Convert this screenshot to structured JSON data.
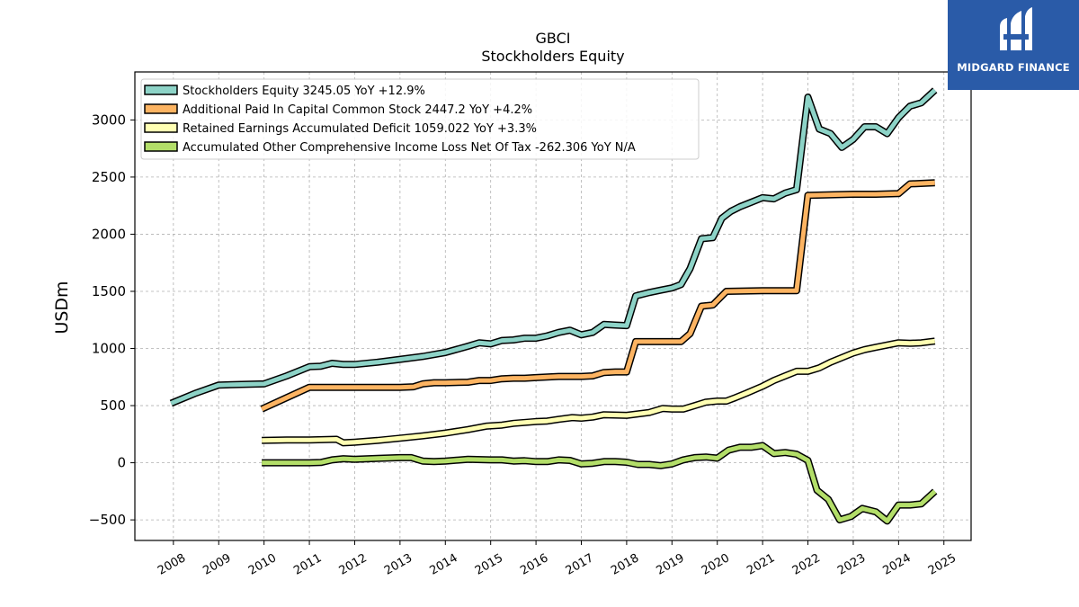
{
  "chart_data": {
    "type": "line",
    "title": "GBCI",
    "subtitle": "Stockholders  Equity",
    "ylabel": "USDm",
    "xlabel": "",
    "xlim": [
      2007.15,
      2025.6
    ],
    "ylim": [
      -680,
      3420
    ],
    "x_ticks": [
      2008,
      2009,
      2010,
      2011,
      2012,
      2013,
      2014,
      2015,
      2016,
      2017,
      2018,
      2019,
      2020,
      2021,
      2022,
      2023,
      2024,
      2025
    ],
    "y_ticks": [
      -500,
      0,
      500,
      1000,
      1500,
      2000,
      2500,
      3000
    ],
    "y_tick_labels": [
      "−500",
      "0",
      "500",
      "1000",
      "1500",
      "2000",
      "2500",
      "3000"
    ],
    "grid": true,
    "legend_position": "upper-left",
    "series": [
      {
        "name": "Stockholders Equity  3245.05 YoY +12.9%",
        "color": "#8dd3c7",
        "points": [
          [
            2007.95,
            520
          ],
          [
            2008.5,
            610
          ],
          [
            2009.0,
            680
          ],
          [
            2009.5,
            685
          ],
          [
            2010.0,
            690
          ],
          [
            2010.5,
            760
          ],
          [
            2011.0,
            840
          ],
          [
            2011.25,
            845
          ],
          [
            2011.5,
            870
          ],
          [
            2011.75,
            860
          ],
          [
            2012.0,
            860
          ],
          [
            2012.5,
            880
          ],
          [
            2013.0,
            905
          ],
          [
            2013.5,
            930
          ],
          [
            2014.0,
            965
          ],
          [
            2014.5,
            1020
          ],
          [
            2014.75,
            1050
          ],
          [
            2015.0,
            1040
          ],
          [
            2015.25,
            1070
          ],
          [
            2015.5,
            1075
          ],
          [
            2015.75,
            1090
          ],
          [
            2016.0,
            1090
          ],
          [
            2016.25,
            1110
          ],
          [
            2016.5,
            1140
          ],
          [
            2016.75,
            1160
          ],
          [
            2017.0,
            1120
          ],
          [
            2017.25,
            1140
          ],
          [
            2017.5,
            1210
          ],
          [
            2017.75,
            1205
          ],
          [
            2018.0,
            1200
          ],
          [
            2018.2,
            1460
          ],
          [
            2018.5,
            1490
          ],
          [
            2018.75,
            1510
          ],
          [
            2019.0,
            1530
          ],
          [
            2019.2,
            1560
          ],
          [
            2019.4,
            1700
          ],
          [
            2019.65,
            1960
          ],
          [
            2019.9,
            1970
          ],
          [
            2020.1,
            2140
          ],
          [
            2020.3,
            2200
          ],
          [
            2020.5,
            2240
          ],
          [
            2020.75,
            2280
          ],
          [
            2021.0,
            2320
          ],
          [
            2021.25,
            2310
          ],
          [
            2021.5,
            2360
          ],
          [
            2021.75,
            2390
          ],
          [
            2022.0,
            3200
          ],
          [
            2022.25,
            2920
          ],
          [
            2022.5,
            2880
          ],
          [
            2022.75,
            2760
          ],
          [
            2023.0,
            2830
          ],
          [
            2023.25,
            2940
          ],
          [
            2023.5,
            2940
          ],
          [
            2023.75,
            2880
          ],
          [
            2024.0,
            3020
          ],
          [
            2024.25,
            3120
          ],
          [
            2024.5,
            3150
          ],
          [
            2024.8,
            3260
          ]
        ]
      },
      {
        "name": "Additional Paid In Capital Common Stock  2447.2 YoY +4.2%",
        "color": "#fdb462",
        "points": [
          [
            2009.95,
            470
          ],
          [
            2010.5,
            570
          ],
          [
            2011.0,
            660
          ],
          [
            2011.5,
            660
          ],
          [
            2012.0,
            660
          ],
          [
            2012.5,
            660
          ],
          [
            2013.0,
            660
          ],
          [
            2013.3,
            665
          ],
          [
            2013.5,
            690
          ],
          [
            2013.75,
            700
          ],
          [
            2014.0,
            700
          ],
          [
            2014.5,
            705
          ],
          [
            2014.75,
            720
          ],
          [
            2015.0,
            720
          ],
          [
            2015.25,
            735
          ],
          [
            2015.5,
            740
          ],
          [
            2015.75,
            740
          ],
          [
            2016.0,
            745
          ],
          [
            2016.25,
            750
          ],
          [
            2016.5,
            755
          ],
          [
            2016.75,
            755
          ],
          [
            2017.0,
            755
          ],
          [
            2017.25,
            760
          ],
          [
            2017.5,
            790
          ],
          [
            2017.75,
            795
          ],
          [
            2018.0,
            795
          ],
          [
            2018.2,
            1060
          ],
          [
            2018.5,
            1060
          ],
          [
            2019.0,
            1060
          ],
          [
            2019.2,
            1060
          ],
          [
            2019.4,
            1130
          ],
          [
            2019.65,
            1370
          ],
          [
            2019.9,
            1380
          ],
          [
            2020.2,
            1500
          ],
          [
            2021.0,
            1505
          ],
          [
            2021.75,
            1505
          ],
          [
            2022.0,
            2340
          ],
          [
            2022.5,
            2345
          ],
          [
            2023.0,
            2350
          ],
          [
            2023.5,
            2350
          ],
          [
            2024.0,
            2355
          ],
          [
            2024.25,
            2440
          ],
          [
            2024.8,
            2450
          ]
        ]
      },
      {
        "name": "Retained Earnings Accumulated Deficit  1059.022 YoY +3.3%",
        "color": "#ffffb3",
        "points": [
          [
            2009.95,
            195
          ],
          [
            2010.5,
            200
          ],
          [
            2011.0,
            200
          ],
          [
            2011.6,
            205
          ],
          [
            2011.75,
            175
          ],
          [
            2012.0,
            180
          ],
          [
            2012.5,
            195
          ],
          [
            2013.0,
            215
          ],
          [
            2013.5,
            235
          ],
          [
            2014.0,
            260
          ],
          [
            2014.5,
            290
          ],
          [
            2014.9,
            320
          ],
          [
            2015.25,
            330
          ],
          [
            2015.5,
            345
          ],
          [
            2016.0,
            360
          ],
          [
            2016.25,
            365
          ],
          [
            2016.5,
            380
          ],
          [
            2016.8,
            395
          ],
          [
            2017.0,
            390
          ],
          [
            2017.25,
            400
          ],
          [
            2017.5,
            420
          ],
          [
            2018.0,
            415
          ],
          [
            2018.5,
            440
          ],
          [
            2018.8,
            475
          ],
          [
            2019.0,
            470
          ],
          [
            2019.25,
            470
          ],
          [
            2019.5,
            500
          ],
          [
            2019.75,
            530
          ],
          [
            2020.0,
            540
          ],
          [
            2020.2,
            540
          ],
          [
            2020.4,
            570
          ],
          [
            2020.65,
            610
          ],
          [
            2021.0,
            670
          ],
          [
            2021.25,
            720
          ],
          [
            2021.5,
            760
          ],
          [
            2021.75,
            800
          ],
          [
            2022.0,
            800
          ],
          [
            2022.25,
            830
          ],
          [
            2022.5,
            880
          ],
          [
            2022.75,
            920
          ],
          [
            2023.0,
            960
          ],
          [
            2023.25,
            990
          ],
          [
            2023.5,
            1010
          ],
          [
            2023.75,
            1030
          ],
          [
            2024.0,
            1050
          ],
          [
            2024.25,
            1045
          ],
          [
            2024.5,
            1050
          ],
          [
            2024.8,
            1065
          ]
        ]
      },
      {
        "name": "Accumulated Other Comprehensive Income Loss Net Of Tax  -262.306 YoY N/A",
        "color": "#b3de69",
        "points": [
          [
            2009.95,
            0
          ],
          [
            2010.5,
            0
          ],
          [
            2011.0,
            0
          ],
          [
            2011.25,
            2
          ],
          [
            2011.5,
            25
          ],
          [
            2011.75,
            35
          ],
          [
            2012.0,
            30
          ],
          [
            2012.5,
            38
          ],
          [
            2013.0,
            45
          ],
          [
            2013.25,
            45
          ],
          [
            2013.5,
            15
          ],
          [
            2013.75,
            10
          ],
          [
            2014.0,
            15
          ],
          [
            2014.5,
            30
          ],
          [
            2015.0,
            25
          ],
          [
            2015.25,
            25
          ],
          [
            2015.5,
            15
          ],
          [
            2015.75,
            18
          ],
          [
            2016.0,
            10
          ],
          [
            2016.25,
            10
          ],
          [
            2016.5,
            25
          ],
          [
            2016.75,
            20
          ],
          [
            2017.0,
            -10
          ],
          [
            2017.25,
            -5
          ],
          [
            2017.5,
            10
          ],
          [
            2017.75,
            10
          ],
          [
            2018.0,
            5
          ],
          [
            2018.25,
            -15
          ],
          [
            2018.5,
            -15
          ],
          [
            2018.75,
            -25
          ],
          [
            2019.0,
            -10
          ],
          [
            2019.25,
            25
          ],
          [
            2019.5,
            45
          ],
          [
            2019.75,
            50
          ],
          [
            2020.0,
            40
          ],
          [
            2020.25,
            110
          ],
          [
            2020.5,
            135
          ],
          [
            2020.75,
            135
          ],
          [
            2021.0,
            150
          ],
          [
            2021.25,
            80
          ],
          [
            2021.5,
            90
          ],
          [
            2021.75,
            75
          ],
          [
            2022.0,
            20
          ],
          [
            2022.2,
            -240
          ],
          [
            2022.45,
            -320
          ],
          [
            2022.7,
            -500
          ],
          [
            2022.95,
            -470
          ],
          [
            2023.2,
            -400
          ],
          [
            2023.5,
            -430
          ],
          [
            2023.75,
            -510
          ],
          [
            2024.0,
            -370
          ],
          [
            2024.25,
            -370
          ],
          [
            2024.5,
            -360
          ],
          [
            2024.8,
            -250
          ]
        ]
      }
    ]
  },
  "logo": {
    "text": "MIDGARD FINANCE",
    "color": "#2a5ba8"
  }
}
